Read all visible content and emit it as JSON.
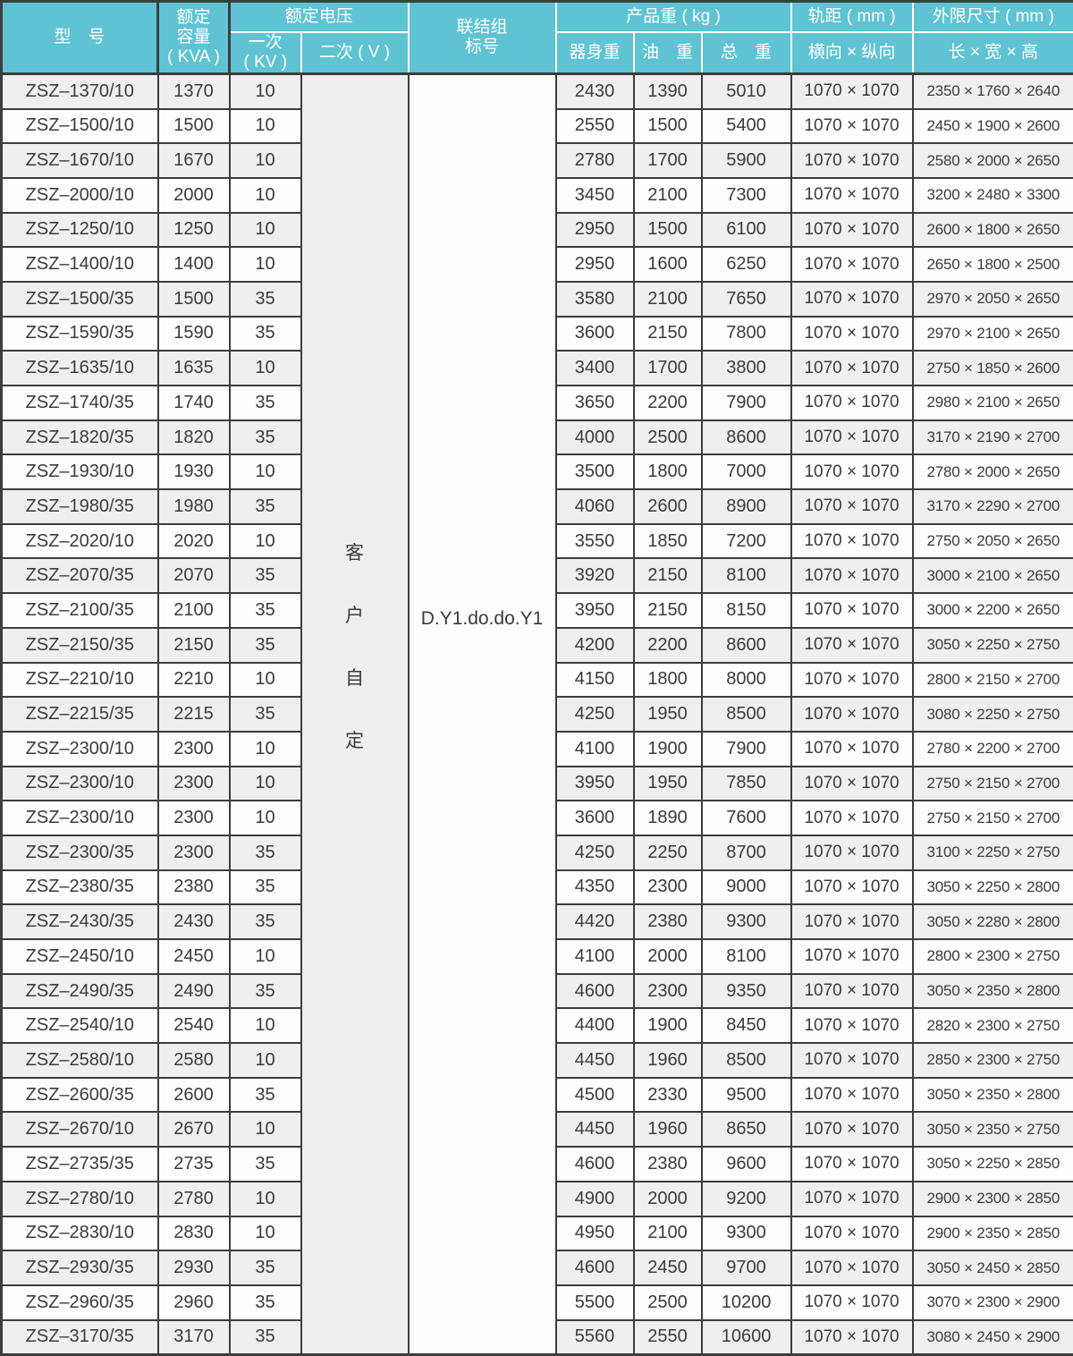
{
  "table": {
    "headers": {
      "model": "型　号",
      "capacity": "额定\n容量\n( KVA )",
      "voltage_group": "额定电压",
      "primary": "一次\n( KV )",
      "secondary": "二次 ( V )",
      "connection": "联结组\n标号",
      "weight_group": "产品重 ( kg )",
      "body_weight": "器身重",
      "oil_weight": "油　重",
      "total_weight": "总　重",
      "gauge_group": "轨距 ( mm )",
      "gauge_sub": "横向 × 纵向",
      "dims_group": "外限尺寸 ( mm )",
      "dims_sub": "长 × 宽 × 高"
    },
    "merged": {
      "secondary_value": "客\n户\n自\n定",
      "connection_value": "D.Y1.do.do.Y1"
    },
    "column_keys": [
      "model",
      "kva",
      "kv",
      "body-weight",
      "oil-weight",
      "total-weight",
      "gauge",
      "dims"
    ],
    "rows": [
      [
        "ZSZ–1370/10",
        "1370",
        "10",
        "2430",
        "1390",
        "5010",
        "1070 × 1070",
        "2350 × 1760 × 2640"
      ],
      [
        "ZSZ–1500/10",
        "1500",
        "10",
        "2550",
        "1500",
        "5400",
        "1070 × 1070",
        "2450 × 1900 × 2600"
      ],
      [
        "ZSZ–1670/10",
        "1670",
        "10",
        "2780",
        "1700",
        "5900",
        "1070 × 1070",
        "2580 × 2000 × 2650"
      ],
      [
        "ZSZ–2000/10",
        "2000",
        "10",
        "3450",
        "2100",
        "7300",
        "1070 × 1070",
        "3200 × 2480 × 3300"
      ],
      [
        "ZSZ–1250/10",
        "1250",
        "10",
        "2950",
        "1500",
        "6100",
        "1070 × 1070",
        "2600 × 1800 × 2650"
      ],
      [
        "ZSZ–1400/10",
        "1400",
        "10",
        "2950",
        "1600",
        "6250",
        "1070 × 1070",
        "2650 × 1800 × 2500"
      ],
      [
        "ZSZ–1500/35",
        "1500",
        "35",
        "3580",
        "2100",
        "7650",
        "1070 × 1070",
        "2970 × 2050 × 2650"
      ],
      [
        "ZSZ–1590/35",
        "1590",
        "35",
        "3600",
        "2150",
        "7800",
        "1070 × 1070",
        "2970 × 2100 × 2650"
      ],
      [
        "ZSZ–1635/10",
        "1635",
        "10",
        "3400",
        "1700",
        "3800",
        "1070 × 1070",
        "2750 × 1850 × 2600"
      ],
      [
        "ZSZ–1740/35",
        "1740",
        "35",
        "3650",
        "2200",
        "7900",
        "1070 × 1070",
        "2980 × 2100 × 2650"
      ],
      [
        "ZSZ–1820/35",
        "1820",
        "35",
        "4000",
        "2500",
        "8600",
        "1070 × 1070",
        "3170 × 2190 × 2700"
      ],
      [
        "ZSZ–1930/10",
        "1930",
        "10",
        "3500",
        "1800",
        "7000",
        "1070 × 1070",
        "2780 × 2000 × 2650"
      ],
      [
        "ZSZ–1980/35",
        "1980",
        "35",
        "4060",
        "2600",
        "8900",
        "1070 × 1070",
        "3170 × 2290 × 2700"
      ],
      [
        "ZSZ–2020/10",
        "2020",
        "10",
        "3550",
        "1850",
        "7200",
        "1070 × 1070",
        "2750 × 2050 × 2650"
      ],
      [
        "ZSZ–2070/35",
        "2070",
        "35",
        "3920",
        "2150",
        "8100",
        "1070 × 1070",
        "3000 × 2100 × 2650"
      ],
      [
        "ZSZ–2100/35",
        "2100",
        "35",
        "3950",
        "2150",
        "8150",
        "1070 × 1070",
        "3000 × 2200 × 2650"
      ],
      [
        "ZSZ–2150/35",
        "2150",
        "35",
        "4200",
        "2200",
        "8600",
        "1070 × 1070",
        "3050 × 2250 × 2750"
      ],
      [
        "ZSZ–2210/10",
        "2210",
        "10",
        "4150",
        "1800",
        "8000",
        "1070 × 1070",
        "2800 × 2150 × 2700"
      ],
      [
        "ZSZ–2215/35",
        "2215",
        "35",
        "4250",
        "1950",
        "8500",
        "1070 × 1070",
        "3080 × 2250 × 2750"
      ],
      [
        "ZSZ–2300/10",
        "2300",
        "10",
        "4100",
        "1900",
        "7900",
        "1070 × 1070",
        "2780 × 2200 × 2700"
      ],
      [
        "ZSZ–2300/10",
        "2300",
        "10",
        "3950",
        "1950",
        "7850",
        "1070 × 1070",
        "2750 × 2150 × 2700"
      ],
      [
        "ZSZ–2300/10",
        "2300",
        "10",
        "3600",
        "1890",
        "7600",
        "1070 × 1070",
        "2750 × 2150 × 2700"
      ],
      [
        "ZSZ–2300/35",
        "2300",
        "35",
        "4250",
        "2250",
        "8700",
        "1070 × 1070",
        "3100 × 2250 × 2750"
      ],
      [
        "ZSZ–2380/35",
        "2380",
        "35",
        "4350",
        "2300",
        "9000",
        "1070 × 1070",
        "3050 × 2250 × 2800"
      ],
      [
        "ZSZ–2430/35",
        "2430",
        "35",
        "4420",
        "2380",
        "9300",
        "1070 × 1070",
        "3050 × 2280 × 2800"
      ],
      [
        "ZSZ–2450/10",
        "2450",
        "10",
        "4100",
        "2000",
        "8100",
        "1070 × 1070",
        "2800 × 2300 × 2750"
      ],
      [
        "ZSZ–2490/35",
        "2490",
        "35",
        "4600",
        "2300",
        "9350",
        "1070 × 1070",
        "3050 × 2350 × 2800"
      ],
      [
        "ZSZ–2540/10",
        "2540",
        "10",
        "4400",
        "1900",
        "8450",
        "1070 × 1070",
        "2820 × 2300 × 2750"
      ],
      [
        "ZSZ–2580/10",
        "2580",
        "10",
        "4450",
        "1960",
        "8500",
        "1070 × 1070",
        "2850 × 2300 × 2750"
      ],
      [
        "ZSZ–2600/35",
        "2600",
        "35",
        "4500",
        "2330",
        "9500",
        "1070 × 1070",
        "3050 × 2350 × 2800"
      ],
      [
        "ZSZ–2670/10",
        "2670",
        "10",
        "4450",
        "1960",
        "8650",
        "1070 × 1070",
        "3050 × 2350 × 2750"
      ],
      [
        "ZSZ–2735/35",
        "2735",
        "35",
        "4600",
        "2380",
        "9600",
        "1070 × 1070",
        "3050 × 2250 × 2850"
      ],
      [
        "ZSZ–2780/10",
        "2780",
        "10",
        "4900",
        "2000",
        "9200",
        "1070 × 1070",
        "2900 × 2300 × 2850"
      ],
      [
        "ZSZ–2830/10",
        "2830",
        "10",
        "4950",
        "2100",
        "9300",
        "1070 × 1070",
        "2900 × 2350 × 2850"
      ],
      [
        "ZSZ–2930/35",
        "2930",
        "35",
        "4600",
        "2450",
        "9700",
        "1070 × 1070",
        "3050 × 2450 × 2850"
      ],
      [
        "ZSZ–2960/35",
        "2960",
        "35",
        "5500",
        "2500",
        "10200",
        "1070 × 1070",
        "3070 × 2300 × 2900"
      ],
      [
        "ZSZ–3170/35",
        "3170",
        "35",
        "5560",
        "2550",
        "10600",
        "1070 × 1070",
        "3080 × 2450 × 2900"
      ]
    ]
  },
  "colors": {
    "header_bg": "#5FC3D3",
    "border": "#3D3D3D",
    "row_alt": "#EFEFEF",
    "row_base": "#FDFDFD",
    "header_text": "#FFFFFF",
    "cell_text": "#3B3B3B"
  }
}
